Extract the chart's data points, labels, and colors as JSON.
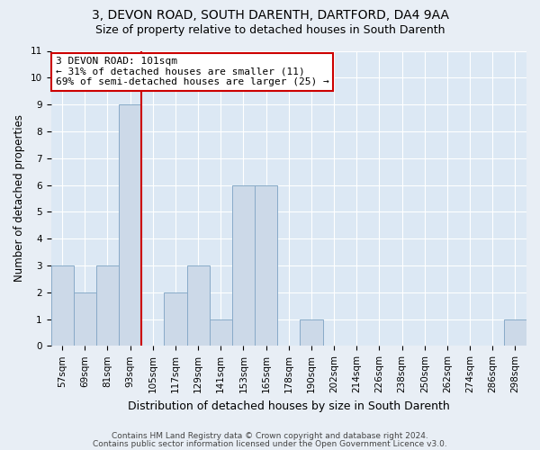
{
  "title": "3, DEVON ROAD, SOUTH DARENTH, DARTFORD, DA4 9AA",
  "subtitle": "Size of property relative to detached houses in South Darenth",
  "xlabel": "Distribution of detached houses by size in South Darenth",
  "ylabel": "Number of detached properties",
  "bin_labels": [
    "57sqm",
    "69sqm",
    "81sqm",
    "93sqm",
    "105sqm",
    "117sqm",
    "129sqm",
    "141sqm",
    "153sqm",
    "165sqm",
    "178sqm",
    "190sqm",
    "202sqm",
    "214sqm",
    "226sqm",
    "238sqm",
    "250sqm",
    "262sqm",
    "274sqm",
    "286sqm",
    "298sqm"
  ],
  "bar_heights": [
    3,
    2,
    3,
    9,
    0,
    2,
    3,
    1,
    6,
    6,
    0,
    1,
    0,
    0,
    0,
    0,
    0,
    0,
    0,
    0,
    1
  ],
  "bar_color": "#ccd9e8",
  "bar_edgecolor": "#88aac8",
  "vline_x": 4.0,
  "vline_color": "#cc0000",
  "ylim": [
    0,
    11
  ],
  "yticks": [
    0,
    1,
    2,
    3,
    4,
    5,
    6,
    7,
    8,
    9,
    10,
    11
  ],
  "annotation_title": "3 DEVON ROAD: 101sqm",
  "annotation_line1": "← 31% of detached houses are smaller (11)",
  "annotation_line2": "69% of semi-detached houses are larger (25) →",
  "annotation_box_color": "#ffffff",
  "annotation_box_edgecolor": "#cc0000",
  "footer_line1": "Contains HM Land Registry data © Crown copyright and database right 2024.",
  "footer_line2": "Contains public sector information licensed under the Open Government Licence v3.0.",
  "bg_color": "#e8eef5",
  "plot_bg_color": "#dce8f4",
  "grid_color": "#ffffff",
  "title_fontsize": 10,
  "subtitle_fontsize": 9,
  "ylabel_fontsize": 8.5,
  "xlabel_fontsize": 9,
  "tick_fontsize": 7.5,
  "annot_fontsize": 8.0,
  "footer_fontsize": 6.5
}
